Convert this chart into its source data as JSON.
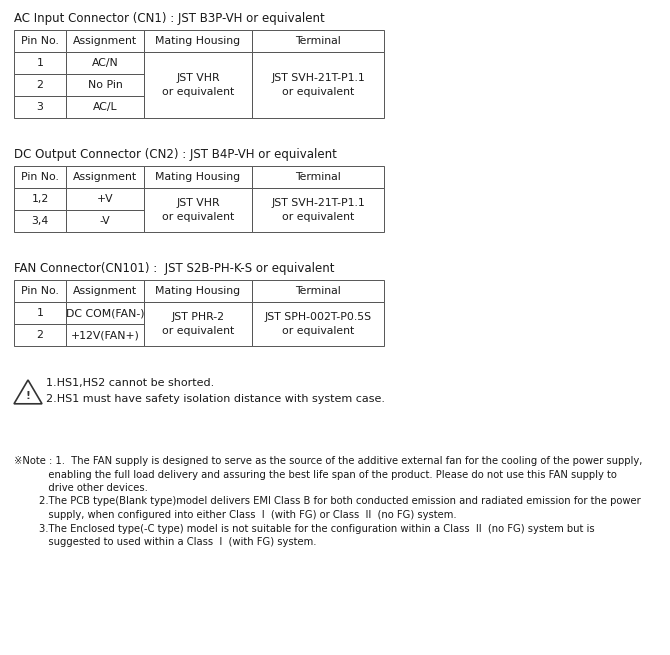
{
  "bg_color": "#ffffff",
  "text_color": "#1a1a1a",
  "table_border_color": "#555555",
  "section1_title": "AC Input Connector (CN1) : JST B3P-VH or equivalent",
  "section1_headers": [
    "Pin No.",
    "Assignment",
    "Mating Housing",
    "Terminal"
  ],
  "section2_title": "DC Output Connector (CN2) : JST B4P-VH or equivalent",
  "section2_headers": [
    "Pin No.",
    "Assignment",
    "Mating Housing",
    "Terminal"
  ],
  "section3_title": "FAN Connector(CN101) :  JST S2B-PH-K-S or equivalent",
  "section3_headers": [
    "Pin No.",
    "Assignment",
    "Mating Housing",
    "Terminal"
  ],
  "warning_line1": "1.HS1,HS2 cannot be shorted.",
  "warning_line2": "2.HS1 must have safety isolation distance with system case.",
  "note1a": "※Note : 1.  The FAN supply is designed to serve as the source of the additive external fan for the cooling of the power supply,",
  "note1b": "           enabling the full load delivery and assuring the best life span of the product. Please do not use this FAN supply to",
  "note1c": "           drive other devices.",
  "note2a": "        2.The PCB type(Blank type)model delivers EMI Class B for both conducted emission and radiated emission for the power",
  "note2b": "           supply, when configured into either Class  I  (with FG) or Class  II  (no FG) system.",
  "note3a": "        3.The Enclosed type(-C type) model is not suitable for the configuration within a Class  II  (no FG) system but is",
  "note3b": "           suggested to used within a Class  I  (with FG) system.",
  "title_fontsize": 8.5,
  "header_fontsize": 7.8,
  "cell_fontsize": 7.8,
  "warn_fontsize": 8.0,
  "note_fontsize": 7.2
}
